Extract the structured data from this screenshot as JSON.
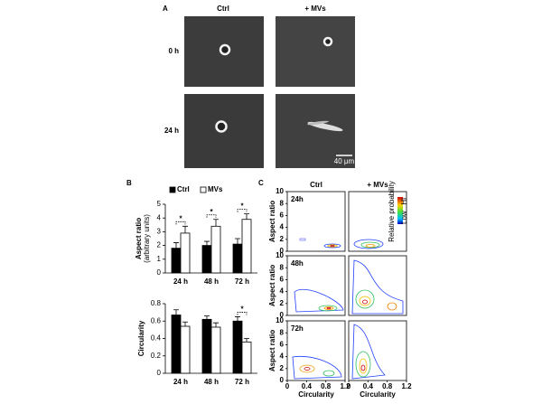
{
  "panel_a": {
    "label": "A",
    "columns": [
      "Ctrl",
      "+ MVs"
    ],
    "rows": [
      "0 h",
      "24 h"
    ],
    "scale_bar": "40 μm"
  },
  "panel_b": {
    "label": "B"
  },
  "chart_data": [
    {
      "type": "bar",
      "ylabel": "Aspect ratio",
      "ylabel_sub": "(arbitrary units)",
      "categories": [
        "24 h",
        "48 h",
        "72 h"
      ],
      "series": [
        {
          "name": "Ctrl",
          "color": "#000000",
          "values": [
            1.8,
            2.0,
            2.1
          ],
          "errors": [
            0.4,
            0.3,
            0.4
          ]
        },
        {
          "name": "MVs",
          "color": "#ffffff",
          "values": [
            2.9,
            3.4,
            3.9
          ],
          "errors": [
            0.5,
            0.5,
            0.4
          ]
        }
      ],
      "ylim": [
        0,
        5
      ],
      "yticks": [
        0,
        1,
        2,
        3,
        4,
        5
      ],
      "legend": "top",
      "significance": [
        "*",
        "*",
        "*"
      ]
    },
    {
      "type": "bar",
      "ylabel": "Circularity",
      "categories": [
        "24 h",
        "48 h",
        "72 h"
      ],
      "series": [
        {
          "name": "Ctrl",
          "color": "#000000",
          "values": [
            0.67,
            0.62,
            0.6
          ],
          "errors": [
            0.06,
            0.04,
            0.05
          ]
        },
        {
          "name": "MVs",
          "color": "#ffffff",
          "values": [
            0.54,
            0.53,
            0.36
          ],
          "errors": [
            0.05,
            0.05,
            0.04
          ]
        }
      ],
      "ylim": [
        0,
        0.8
      ],
      "yticks": [
        0,
        0.2,
        0.4,
        0.6,
        0.8
      ],
      "significance": [
        null,
        null,
        "*"
      ]
    }
  ],
  "panel_c": {
    "label": "C",
    "columns": [
      "Ctrl",
      "+ MVs"
    ],
    "rows": [
      "24h",
      "48h",
      "72h"
    ],
    "xlabel": "Circularity",
    "ylabel": "Aspect ratio",
    "xlim": [
      0,
      1.2
    ],
    "xticks": [
      0,
      0.4,
      0.8,
      1.2
    ],
    "ylim": [
      0,
      10
    ],
    "yticks": [
      0,
      2,
      4,
      6,
      8,
      10
    ],
    "colorbar": {
      "high": "Hi",
      "low": "Low",
      "title": "Relative probability"
    }
  }
}
